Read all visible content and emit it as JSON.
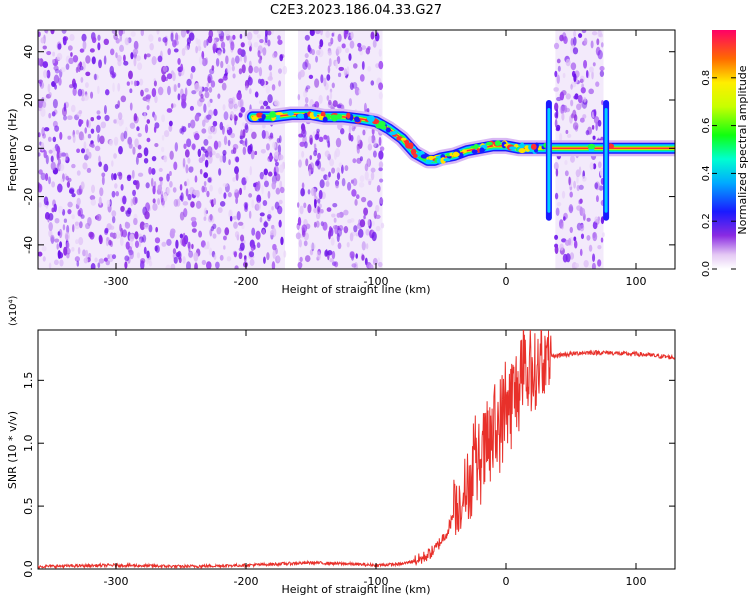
{
  "title": "C2E3.2023.186.04.33.G27",
  "chart_data": [
    {
      "type": "heatmap",
      "xlabel": "Height of straight line (km)",
      "ylabel": "Frequency (Hz)",
      "xlim": [
        -360,
        130
      ],
      "ylim": [
        -50,
        49
      ],
      "xticks": [
        -300,
        -200,
        -100,
        0,
        100
      ],
      "xtick_labels": [
        "-300",
        "-200",
        "-100",
        "0",
        "100"
      ],
      "yticks": [
        -40,
        -20,
        0,
        20,
        40
      ],
      "ytick_labels": [
        "-40",
        "-20",
        "0",
        "20",
        "40"
      ],
      "colorbar": {
        "label": "Normalized spectral amplitude",
        "range": [
          0,
          1
        ],
        "ticks": [
          0.0,
          0.2,
          0.4,
          0.6,
          0.8
        ],
        "tick_labels": [
          "0.0",
          "0.2",
          "0.4",
          "0.6",
          "0.8"
        ]
      },
      "noise_regions_km": [
        [
          -360,
          -170
        ],
        [
          -160,
          -95
        ],
        [
          38,
          75
        ]
      ],
      "signal_track": {
        "height_km": [
          -195,
          -180,
          -165,
          -150,
          -140,
          -125,
          -110,
          -100,
          -90,
          -80,
          -70,
          -60,
          -55,
          -50,
          -40,
          -30,
          -20,
          -10,
          0,
          10,
          20,
          30,
          85,
          130
        ],
        "frequency_hz": [
          13,
          13,
          14,
          14,
          13,
          13,
          12,
          11,
          8,
          4,
          -2,
          -5,
          -5,
          -4,
          -3,
          -1,
          0,
          1,
          1,
          0,
          0,
          0,
          0,
          0
        ]
      },
      "spikes_km": [
        33,
        77
      ]
    },
    {
      "type": "line",
      "xlabel": "Height of straight line (km)",
      "ylabel": "SNR (10 * v/v)",
      "y_multiplier": "(x10⁴)",
      "xlim": [
        -360,
        130
      ],
      "ylim": [
        0,
        1.9
      ],
      "xticks": [
        -300,
        -200,
        -100,
        0,
        100
      ],
      "xtick_labels": [
        "-300",
        "-200",
        "-100",
        "0",
        "100"
      ],
      "yticks": [
        0.0,
        0.5,
        1.0,
        1.5
      ],
      "ytick_labels": [
        "0.0",
        "0.5",
        "1.0",
        "1.5"
      ],
      "color": "#e8302a",
      "series": [
        {
          "x": [
            -360,
            -300,
            -250,
            -200,
            -150,
            -120,
            -100,
            -80,
            -65,
            -55,
            -45,
            -40,
            -35,
            -30,
            -25,
            -20,
            -15,
            -10,
            -5,
            0,
            5,
            10,
            15,
            20,
            25,
            30,
            35,
            40,
            50,
            60,
            70,
            80,
            90,
            100,
            110,
            120,
            130
          ],
          "y": [
            0.02,
            0.03,
            0.02,
            0.03,
            0.05,
            0.04,
            0.03,
            0.04,
            0.08,
            0.15,
            0.3,
            0.45,
            0.55,
            0.65,
            0.75,
            0.85,
            0.95,
            1.05,
            1.15,
            1.25,
            1.35,
            1.45,
            1.5,
            1.55,
            1.6,
            1.65,
            1.68,
            1.7,
            1.71,
            1.72,
            1.72,
            1.72,
            1.71,
            1.71,
            1.7,
            1.69,
            1.68
          ]
        }
      ]
    }
  ]
}
